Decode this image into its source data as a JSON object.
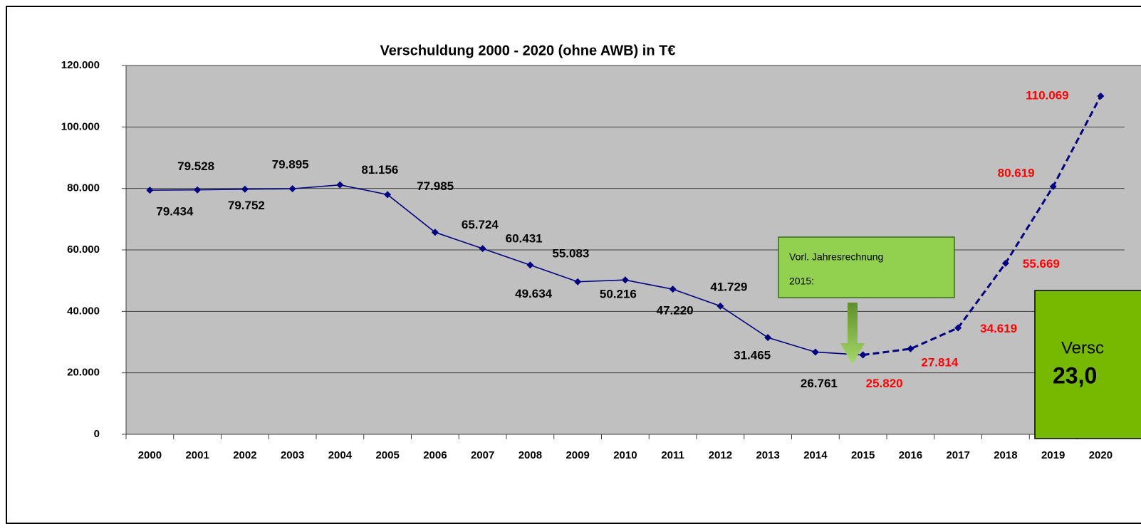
{
  "chart_data": {
    "type": "line",
    "title": "Verschuldung 2000 - 2020 (ohne AWB) in T€",
    "categories": [
      "2000",
      "2001",
      "2002",
      "2003",
      "2004",
      "2005",
      "2006",
      "2007",
      "2008",
      "2009",
      "2010",
      "2011",
      "2012",
      "2013",
      "2014",
      "2015",
      "2016",
      "2017",
      "2018",
      "2019",
      "2020"
    ],
    "series": [
      {
        "color": "#000080",
        "dashed": false,
        "label_color": "#000000",
        "values": [
          79434,
          79528,
          79752,
          79895,
          81156,
          77985,
          65724,
          60431,
          55083,
          49634,
          50216,
          47220,
          41729,
          31465,
          26761,
          25820,
          null,
          null,
          null,
          null,
          null
        ],
        "value_labels": [
          "79.434",
          "79.528",
          "79.752",
          "79.895",
          "81.156",
          "77.985",
          "65.724",
          "60.431",
          "55.083",
          "49.634",
          "50.216",
          "47.220",
          "41.729",
          "31.465",
          "26.761",
          null,
          null,
          null,
          null,
          null,
          null
        ]
      },
      {
        "color": "#000080",
        "dashed": true,
        "label_color": "#ff0000",
        "values": [
          null,
          null,
          null,
          null,
          null,
          null,
          null,
          null,
          null,
          null,
          null,
          null,
          null,
          null,
          null,
          25820,
          27814,
          34619,
          55669,
          80619,
          110069
        ],
        "value_labels": [
          null,
          null,
          null,
          null,
          null,
          null,
          null,
          null,
          null,
          null,
          null,
          null,
          null,
          null,
          null,
          "25.820",
          "27.814",
          "34.619",
          "55.669",
          "80.619",
          "110.069"
        ]
      }
    ],
    "ylim": [
      0,
      120000
    ],
    "yticks": [
      0,
      {
        "value": 20000,
        "label": "20.000"
      },
      {
        "value": 40000,
        "label": "40.000"
      },
      {
        "value": 60000,
        "label": "60.000"
      },
      {
        "value": 80000,
        "label": "80.000"
      },
      {
        "value": 100000,
        "label": "100.000"
      },
      {
        "value": 120000,
        "label": "120.000"
      }
    ],
    "grid": true,
    "plot_background": "#c0c0c0",
    "annotations": [
      {
        "lines": [
          "Vorl. Jahresrechnung",
          "2015:"
        ],
        "color": "#92d050"
      },
      {
        "lines": [
          "Versc",
          "23,0"
        ],
        "color": "#77b800"
      }
    ]
  }
}
